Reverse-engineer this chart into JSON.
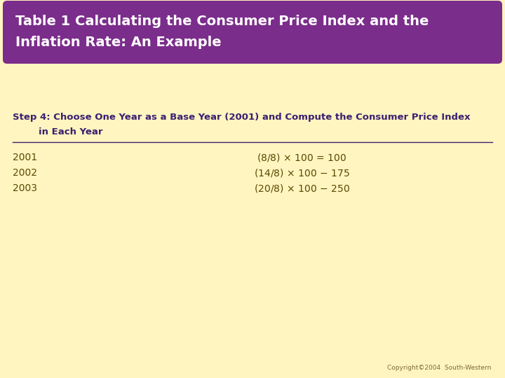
{
  "title_line1": "Table 1 Calculating the Consumer Price Index and the",
  "title_line2": "Inflation Rate: An Example",
  "title_bg_color": "#7B2D8B",
  "title_text_color": "#FFFFFF",
  "background_color": "#FFF5C0",
  "step_line1": "Step 4: Choose One Year as a Base Year (2001) and Compute the Consumer Price Index",
  "step_line2": "        in Each Year",
  "step_text_color": "#3B2070",
  "rows": [
    [
      "2001",
      "($8/$8) × 100 = 100"
    ],
    [
      "2002",
      "($14/$8) × 100 − 175"
    ],
    [
      "2003",
      "($20/$8) × 100 − 250"
    ]
  ],
  "row_text_color": "#5A4800",
  "copyright_text": "Copyright©2004  South-Western",
  "copyright_color": "#7B6A3A",
  "figsize": [
    7.2,
    5.4
  ],
  "dpi": 100
}
